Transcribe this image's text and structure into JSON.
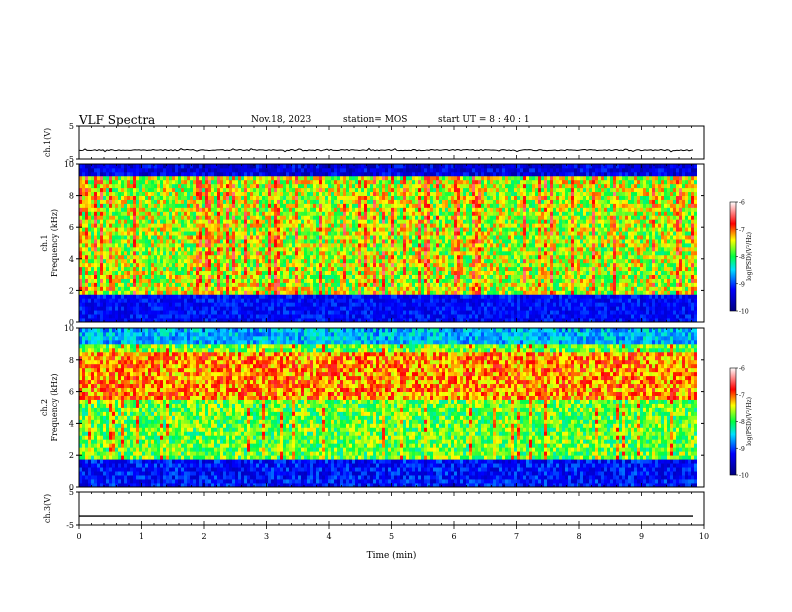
{
  "header": {
    "title": "VLF Spectra",
    "date": "Nov.18, 2023",
    "station": "station= MOS",
    "start": "start  UT =   8 : 40 : 1"
  },
  "chart_data": [
    {
      "type": "line",
      "name": "ch1-voltage",
      "ylabel": "ch.1(V)",
      "ylim": [
        -5,
        5
      ],
      "yticks": [
        "5",
        "-5"
      ],
      "series": [
        {
          "values_approx_constant": -2.3
        }
      ]
    },
    {
      "type": "heatmap",
      "name": "ch1-spectrogram",
      "ylabel_lines": [
        "ch.1",
        "Frequency (kHz)"
      ],
      "ylim": [
        0,
        10
      ],
      "yticks": [
        "0",
        "2",
        "4",
        "6",
        "8",
        "10"
      ],
      "xlim": [
        0,
        9.85
      ],
      "colorbar": {
        "label": "log(PSD)(V²/Hz)",
        "range": [
          -10,
          -6
        ],
        "ticks": [
          "-6",
          "-7",
          "-8",
          "-9",
          "-10"
        ]
      }
    },
    {
      "type": "heatmap",
      "name": "ch2-spectrogram",
      "ylabel_lines": [
        "ch.2",
        "Frequency (kHz)"
      ],
      "ylim": [
        0,
        10
      ],
      "yticks": [
        "0",
        "2",
        "4",
        "6",
        "8",
        "10"
      ],
      "xlim": [
        0,
        9.85
      ],
      "colorbar": {
        "label": "log(PSD)(V²/Hz)",
        "range": [
          -10,
          -6
        ],
        "ticks": [
          "-6",
          "-7",
          "-8",
          "-9",
          "-10"
        ]
      }
    },
    {
      "type": "line",
      "name": "ch3-voltage",
      "ylabel": "ch.3(V)",
      "ylim": [
        -5,
        5
      ],
      "yticks": [
        "5",
        "-5"
      ],
      "series": [
        {
          "values_approx_constant": -2.3
        }
      ]
    }
  ],
  "xaxis": {
    "label": "Time  (min)",
    "range": [
      0,
      10
    ],
    "ticks": [
      "0",
      "1",
      "2",
      "3",
      "4",
      "5",
      "6",
      "7",
      "8",
      "9",
      "10"
    ]
  }
}
